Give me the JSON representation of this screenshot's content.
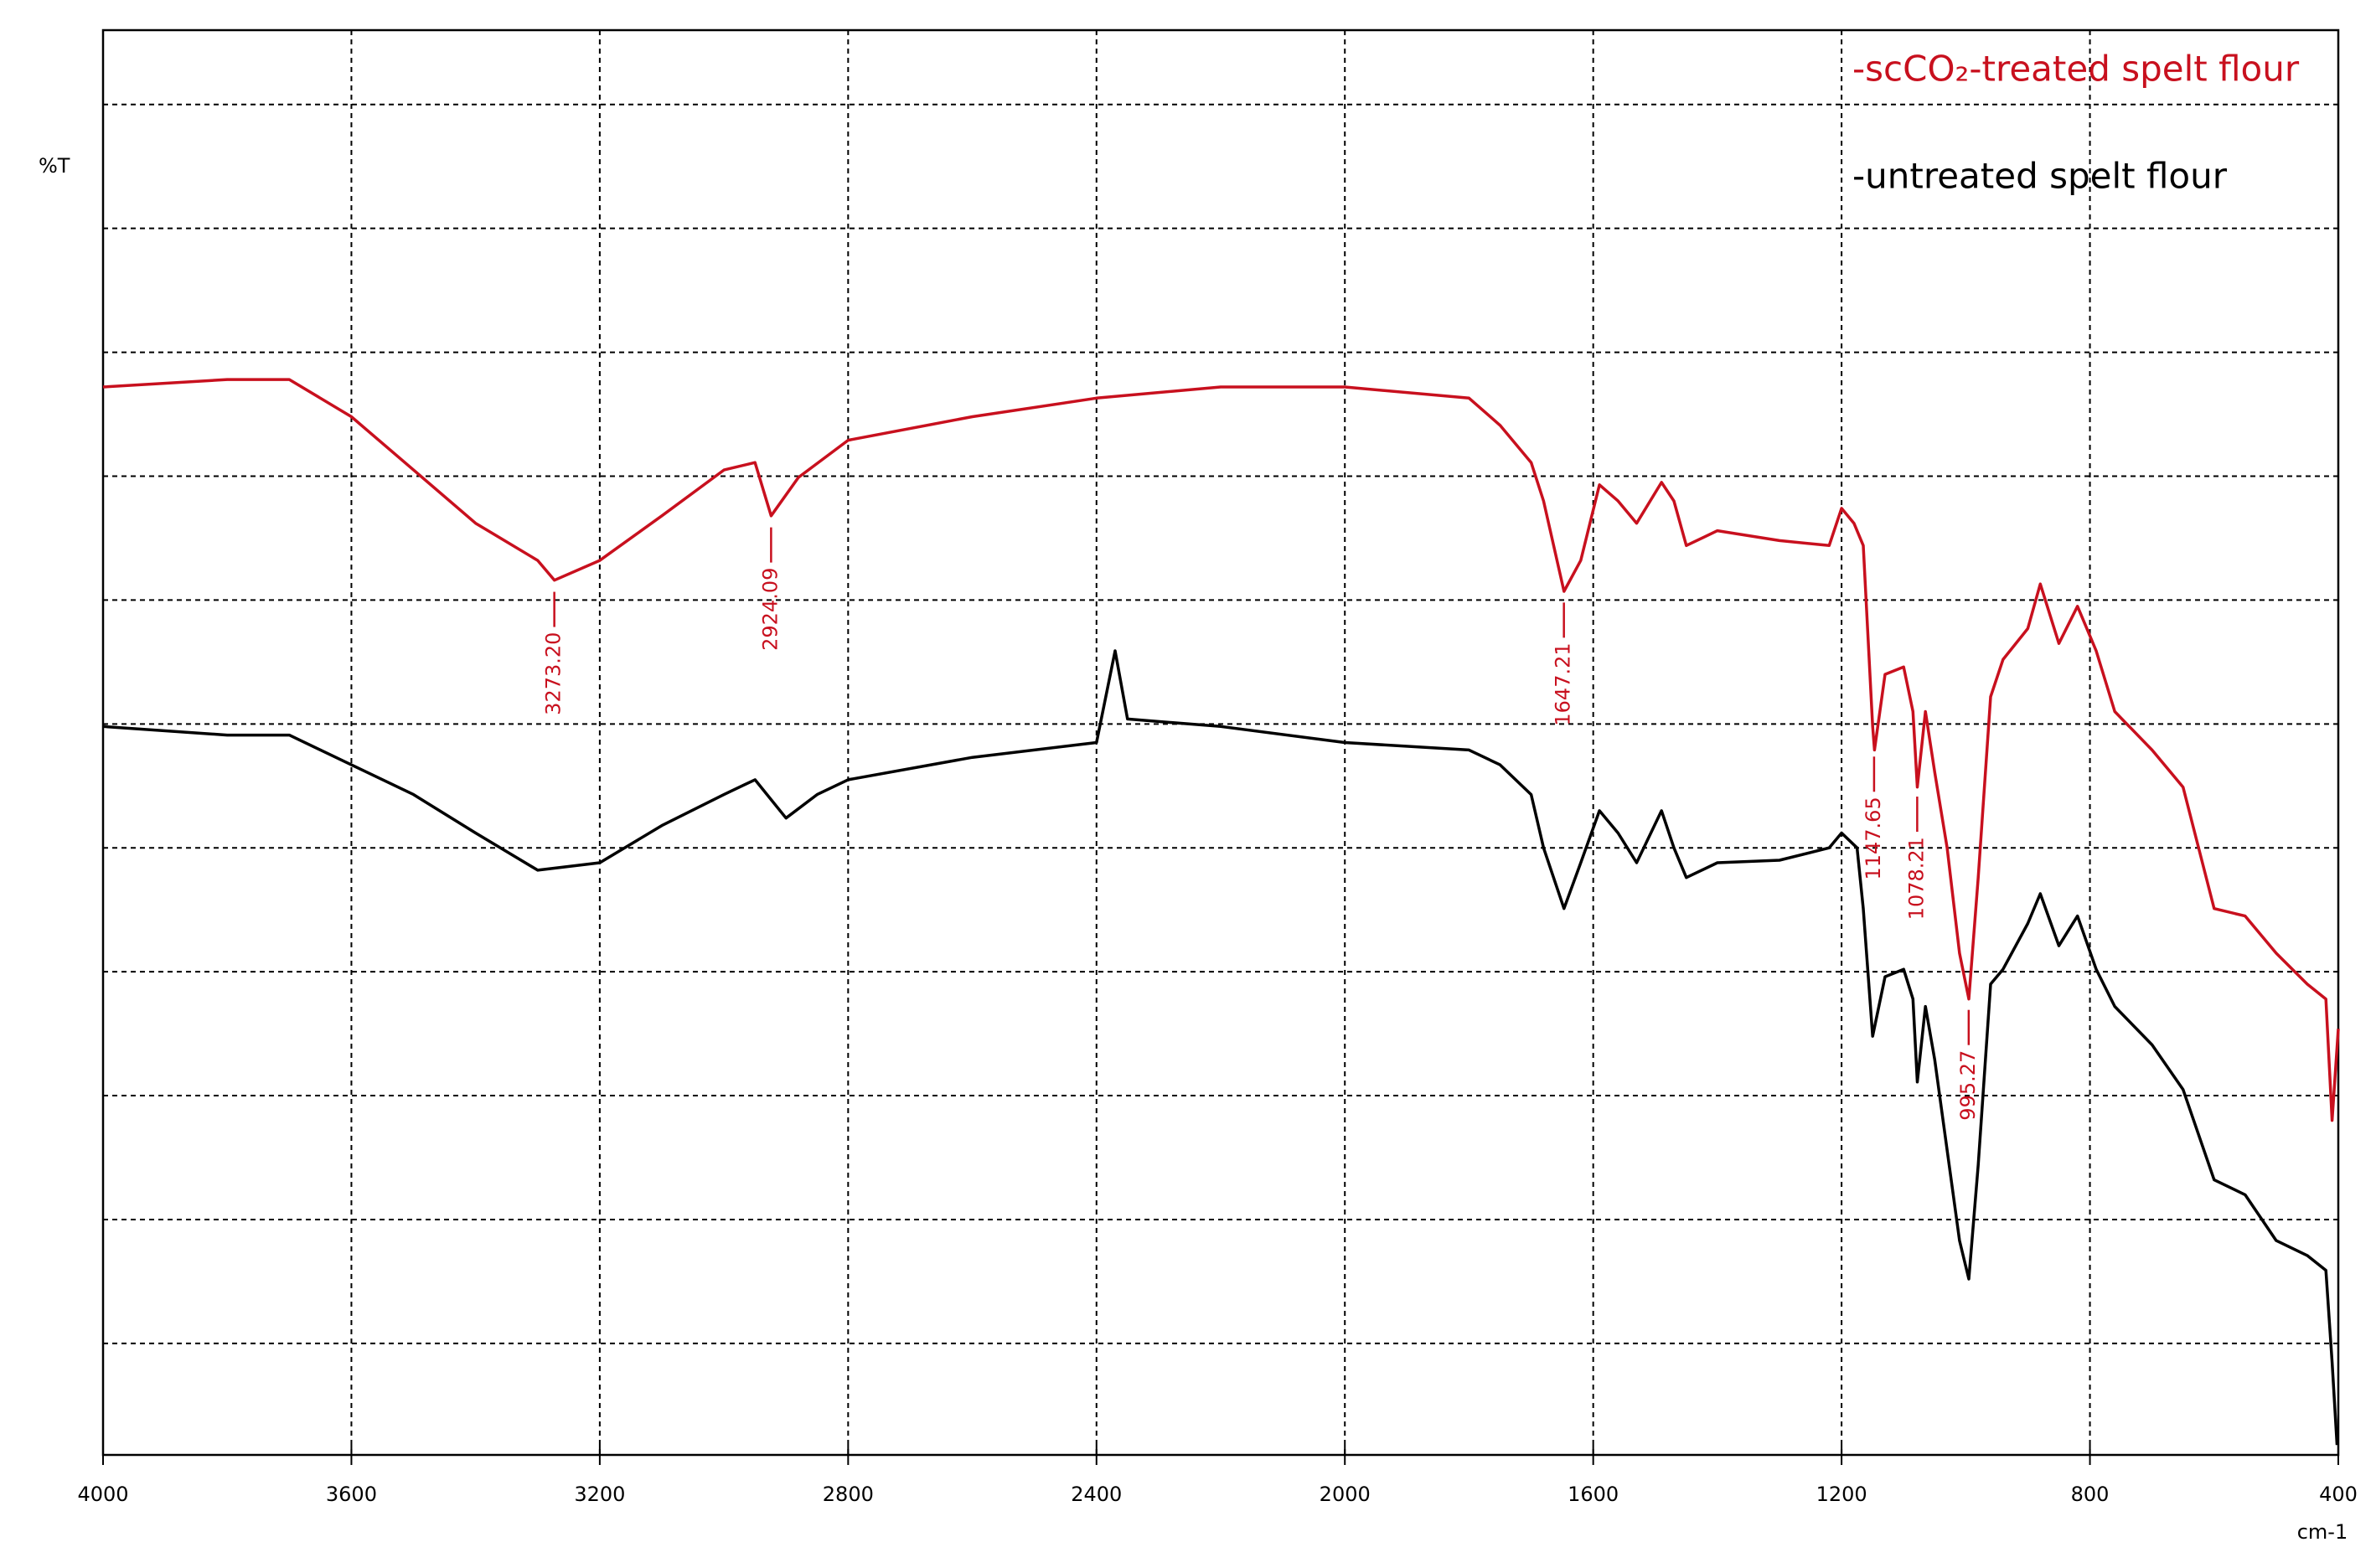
{
  "chart_data": {
    "type": "line",
    "ylabel": "%T",
    "xlabel": "cm-1",
    "xlim": [
      4000,
      400
    ],
    "xticks": [
      4000,
      3600,
      3200,
      2800,
      2400,
      2000,
      1600,
      1200,
      800,
      400
    ],
    "ylim": [
      11,
      126
    ],
    "ygrid": [
      20,
      30,
      40,
      50,
      60,
      70,
      80,
      90,
      100,
      110,
      120
    ],
    "grid": true,
    "series": [
      {
        "name": "-scCO₂-treated spelt flour",
        "color": "#c8101e",
        "x": [
          4000,
          3800,
          3700,
          3600,
          3500,
          3400,
          3300,
          3273,
          3200,
          3100,
          3000,
          2950,
          2924,
          2880,
          2800,
          2600,
          2400,
          2200,
          2000,
          1800,
          1750,
          1700,
          1680,
          1647,
          1620,
          1590,
          1560,
          1530,
          1490,
          1470,
          1450,
          1400,
          1300,
          1220,
          1200,
          1180,
          1165,
          1150,
          1147,
          1130,
          1100,
          1085,
          1078,
          1065,
          1050,
          1030,
          1010,
          995,
          980,
          960,
          940,
          900,
          880,
          850,
          820,
          790,
          760,
          700,
          650,
          600,
          550,
          500,
          450,
          420,
          410,
          400
        ],
        "values": [
          97.2,
          97.8,
          97.8,
          94.8,
          90.5,
          86.2,
          83.2,
          81.6,
          83.2,
          86.8,
          90.5,
          91.1,
          86.8,
          89.9,
          92.9,
          94.8,
          96.3,
          97.2,
          97.2,
          96.3,
          94.1,
          91.1,
          88.0,
          80.7,
          83.2,
          89.3,
          88.0,
          86.2,
          89.5,
          88.0,
          84.4,
          85.6,
          84.8,
          84.4,
          87.4,
          86.2,
          84.4,
          69.8,
          67.9,
          74.0,
          74.6,
          71.0,
          64.9,
          71.0,
          66.1,
          60.0,
          51.5,
          47.8,
          57.6,
          72.2,
          75.2,
          77.7,
          81.3,
          76.5,
          79.5,
          75.9,
          71.0,
          67.9,
          64.9,
          55.1,
          54.5,
          51.5,
          49.0,
          47.8,
          38.0,
          45.4
        ],
        "peaks": [
          {
            "value": 3273.2,
            "label": "3273.20"
          },
          {
            "value": 2924.09,
            "label": "2924.09"
          },
          {
            "value": 1647.21,
            "label": "1647.21"
          },
          {
            "value": 1147.65,
            "label": "1147.65"
          },
          {
            "value": 1078.21,
            "label": "1078.21"
          },
          {
            "value": 995.27,
            "label": "995.27"
          }
        ]
      },
      {
        "name": "-untreated spelt flour",
        "color": "#000000",
        "x": [
          4000,
          3800,
          3700,
          3600,
          3500,
          3400,
          3300,
          3200,
          3100,
          3000,
          2950,
          2900,
          2850,
          2800,
          2600,
          2400,
          2370,
          2350,
          2200,
          2000,
          1800,
          1750,
          1700,
          1680,
          1647,
          1620,
          1590,
          1560,
          1530,
          1490,
          1470,
          1450,
          1400,
          1300,
          1220,
          1200,
          1175,
          1165,
          1150,
          1130,
          1100,
          1085,
          1078,
          1065,
          1050,
          1030,
          1010,
          995,
          980,
          960,
          940,
          900,
          880,
          850,
          820,
          790,
          760,
          700,
          650,
          600,
          550,
          500,
          450,
          420,
          410,
          402
        ],
        "values": [
          69.8,
          69.1,
          69.1,
          66.7,
          64.3,
          61.2,
          58.2,
          58.8,
          61.8,
          64.3,
          65.5,
          62.4,
          64.3,
          65.5,
          67.3,
          68.5,
          75.9,
          70.4,
          69.8,
          68.5,
          67.9,
          66.7,
          64.3,
          60.0,
          55.1,
          58.8,
          63.0,
          61.2,
          58.8,
          63.0,
          60.0,
          57.6,
          58.8,
          59.0,
          60.0,
          61.2,
          60.0,
          55.1,
          44.8,
          49.6,
          50.2,
          47.8,
          41.1,
          47.2,
          42.9,
          35.6,
          28.3,
          25.2,
          34.4,
          49.0,
          50.2,
          53.9,
          56.3,
          52.1,
          54.5,
          50.2,
          47.2,
          44.1,
          40.5,
          33.2,
          32.0,
          28.3,
          27.1,
          25.9,
          18.5,
          11.8
        ]
      }
    ]
  }
}
